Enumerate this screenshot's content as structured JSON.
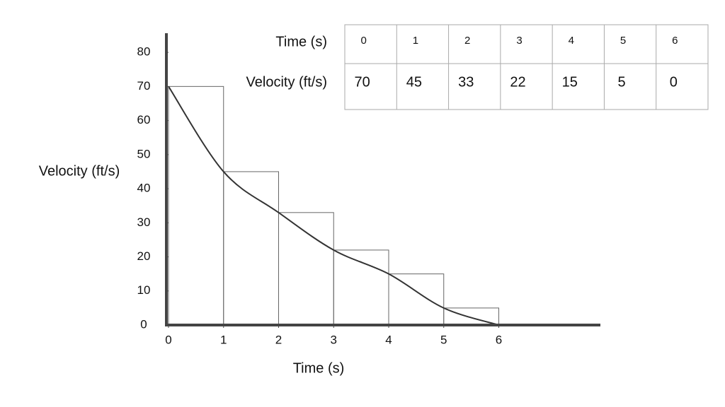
{
  "chart_data": {
    "type": "line",
    "xlabel": "Time (s)",
    "ylabel": "Velocity (ft/s)",
    "x": [
      0,
      1,
      2,
      3,
      4,
      5,
      6
    ],
    "series": [
      {
        "values": [
          70,
          45,
          33,
          22,
          15,
          5,
          0
        ],
        "color": "#333333"
      }
    ],
    "rectangles": "left",
    "xlim": [
      0,
      8
    ],
    "xticks": [
      0,
      1,
      2,
      3,
      4,
      5,
      6
    ],
    "ylim": [
      0,
      85
    ],
    "yticks": [
      0,
      10,
      20,
      30,
      40,
      50,
      60,
      70,
      80
    ],
    "grid": false,
    "table": true
  }
}
